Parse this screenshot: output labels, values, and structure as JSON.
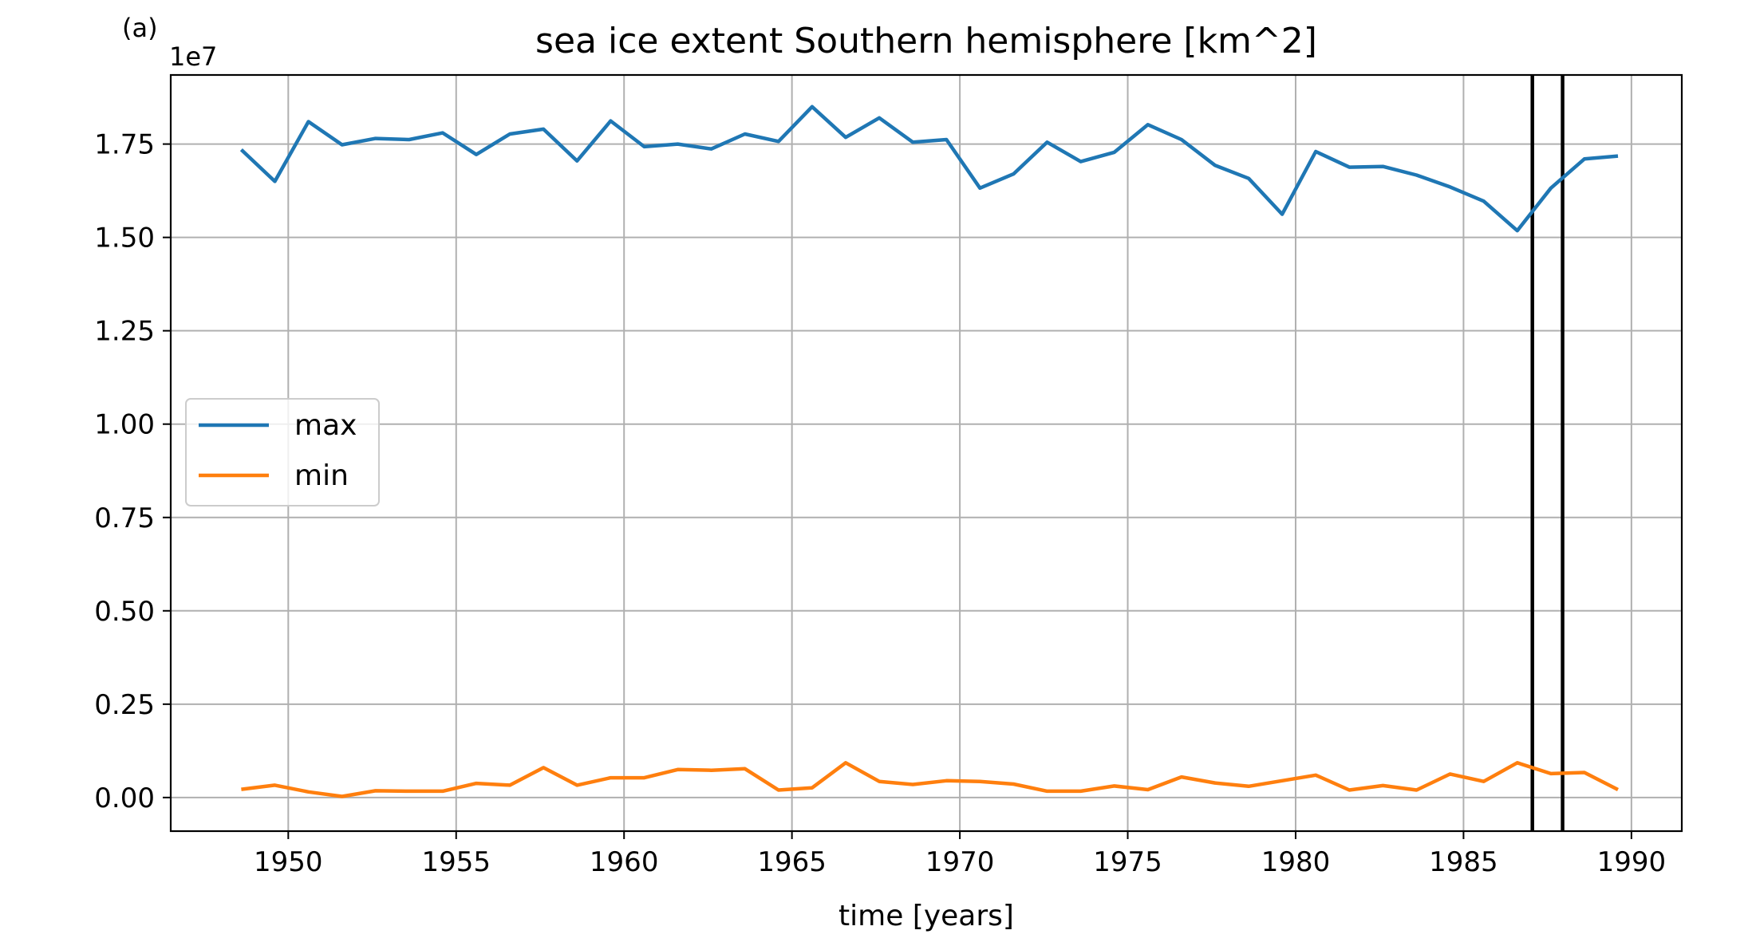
{
  "panel_label": "(a)",
  "chart_data": {
    "type": "line",
    "title": "sea ice extent Southern hemisphere [km^2]",
    "xlabel": "time [years]",
    "ylabel": "",
    "y_offset_label": "1e7",
    "y_scale_factor": 10000000,
    "xlim": [
      1946.5,
      1991.5
    ],
    "ylim": [
      -0.09,
      1.935
    ],
    "grid": true,
    "legend_position": "center-left",
    "x_ticks": [
      1950,
      1955,
      1960,
      1965,
      1970,
      1975,
      1980,
      1985,
      1990
    ],
    "x_tick_labels": [
      "1950",
      "1955",
      "1960",
      "1965",
      "1970",
      "1975",
      "1980",
      "1985",
      "1990"
    ],
    "y_ticks": [
      0.0,
      0.25,
      0.5,
      0.75,
      1.0,
      1.25,
      1.5,
      1.75
    ],
    "y_tick_labels": [
      "0.00",
      "0.25",
      "0.50",
      "0.75",
      "1.00",
      "1.25",
      "1.50",
      "1.75"
    ],
    "vertical_lines": [
      1987.05,
      1987.95
    ],
    "x": [
      1948.6,
      1949.6,
      1950.6,
      1951.6,
      1952.6,
      1953.6,
      1954.6,
      1955.6,
      1956.6,
      1957.6,
      1958.6,
      1959.6,
      1960.6,
      1961.6,
      1962.6,
      1963.6,
      1964.6,
      1965.6,
      1966.6,
      1967.6,
      1968.6,
      1969.6,
      1970.6,
      1971.6,
      1972.6,
      1973.6,
      1974.6,
      1975.6,
      1976.6,
      1977.6,
      1978.6,
      1979.6,
      1980.6,
      1981.6,
      1982.6,
      1983.6,
      1984.6,
      1985.6,
      1986.6,
      1987.6,
      1988.6,
      1989.6
    ],
    "series": [
      {
        "name": "max",
        "color": "#1f77b4",
        "values": [
          1.735,
          1.65,
          1.81,
          1.748,
          1.765,
          1.762,
          1.78,
          1.722,
          1.777,
          1.79,
          1.705,
          1.812,
          1.743,
          1.75,
          1.737,
          1.777,
          1.757,
          1.85,
          1.768,
          1.82,
          1.755,
          1.762,
          1.632,
          1.67,
          1.755,
          1.703,
          1.728,
          1.802,
          1.762,
          1.693,
          1.658,
          1.562,
          1.73,
          1.688,
          1.69,
          1.667,
          1.635,
          1.597,
          1.518,
          1.632,
          1.71,
          1.718
        ]
      },
      {
        "name": "min",
        "color": "#ff7f0e",
        "values": [
          0.022,
          0.033,
          0.015,
          0.003,
          0.018,
          0.017,
          0.017,
          0.038,
          0.033,
          0.08,
          0.033,
          0.053,
          0.053,
          0.075,
          0.073,
          0.077,
          0.02,
          0.026,
          0.093,
          0.043,
          0.035,
          0.045,
          0.043,
          0.036,
          0.017,
          0.017,
          0.031,
          0.021,
          0.055,
          0.039,
          0.03,
          0.045,
          0.06,
          0.02,
          0.032,
          0.02,
          0.063,
          0.043,
          0.093,
          0.064,
          0.067,
          0.021
        ]
      }
    ]
  }
}
